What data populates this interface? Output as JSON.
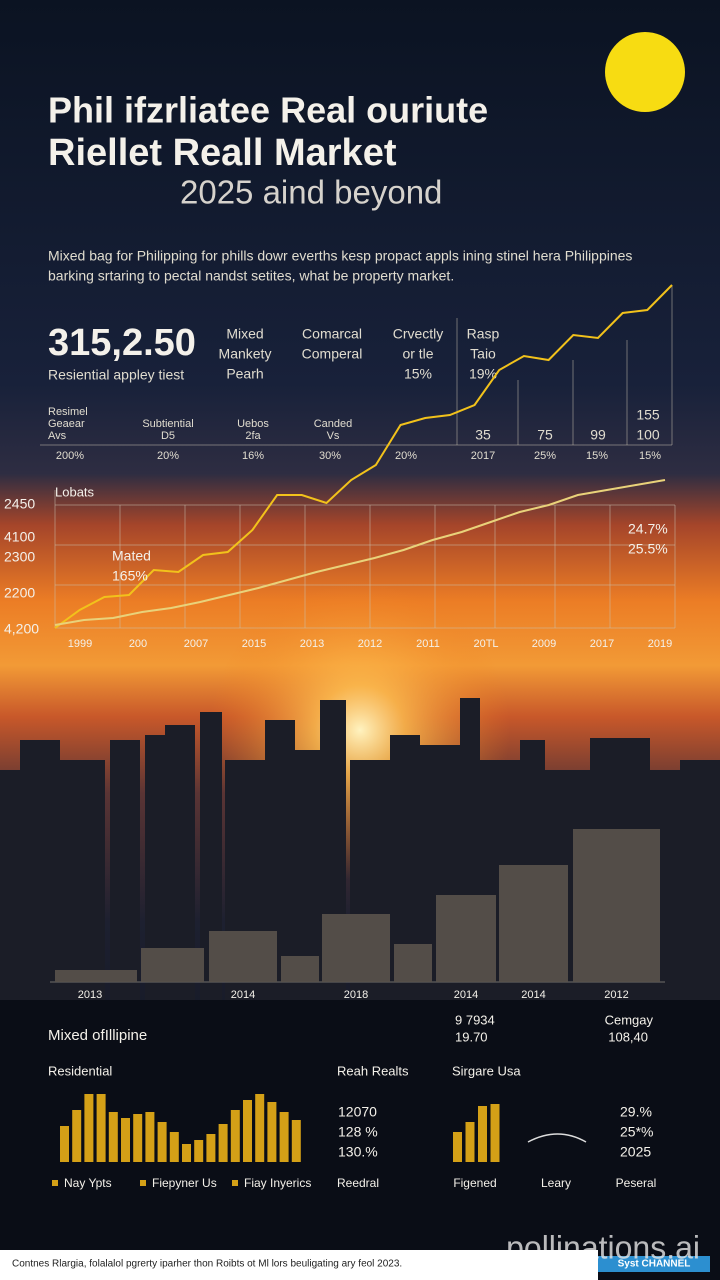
{
  "header": {
    "title": [
      "Phil ifzrliatee Real ouriute",
      "Riellet Reall Market"
    ],
    "subtitle": "2025 aind beyond",
    "intro": [
      "Mixed bag for Philipping for phills dowr everths kesp propact appls ining stinel hera Philippines",
      "barking srtaring to pectal nandst setites, what be property market."
    ]
  },
  "stats": {
    "headline": "315,2.50",
    "caption": "Resiential appley tiest",
    "columns": [
      [
        "Mixed",
        "Mankety",
        "Pearh"
      ],
      [
        "Comarcal",
        "Comperal"
      ],
      [
        "Crvectly",
        "or tle",
        "15%"
      ],
      [
        "Rasp",
        "Taio",
        "19%"
      ]
    ],
    "right_values": [
      "35",
      "75",
      "99",
      "155",
      "100"
    ],
    "row_labels": [
      [
        "Resimel",
        "Geaear",
        "Avs"
      ],
      [
        "Subtiential",
        "D5"
      ],
      [
        "Uebos",
        "2fa"
      ],
      [
        "Canded",
        "Vs"
      ]
    ],
    "row_values": [
      "200%",
      "20%",
      "16%",
      "30%",
      "20%",
      "2017",
      "25%",
      "15%",
      "15%"
    ]
  },
  "chart_data": [
    {
      "type": "line",
      "title": "Lobats",
      "y_labels": [
        "2450",
        "4100",
        "2300",
        "2200",
        "4,200"
      ],
      "x_labels": [
        "1999",
        "200",
        "2007",
        "2015",
        "2013",
        "2012",
        "2011",
        "20TL",
        "2009",
        "2017",
        "2019"
      ],
      "series": [
        {
          "color": "#f2c21b",
          "values": [
            72,
            90,
            103,
            105,
            130,
            128,
            145,
            148,
            170,
            205,
            205,
            197,
            220,
            235,
            275,
            282,
            285,
            295,
            330,
            344,
            340,
            365,
            362,
            387,
            390,
            415
          ]
        },
        {
          "color": "#e9d27a",
          "values": [
            75,
            80,
            82,
            88,
            92,
            98,
            105,
            112,
            120,
            128,
            135,
            142,
            150,
            160,
            168,
            178,
            188,
            195,
            205,
            210,
            215,
            220
          ]
        }
      ],
      "annotations": [
        "Mated",
        "165%",
        "24.7%",
        "25.5%"
      ]
    },
    {
      "type": "bar",
      "color": "#58514b",
      "categories": [
        "2013",
        null,
        "2014",
        null,
        "2018",
        null,
        "2014",
        "2014",
        "2012"
      ],
      "values": [
        12,
        34,
        51,
        26,
        68,
        38,
        87,
        117,
        153
      ]
    },
    {
      "type": "bar",
      "color": "#d4a017",
      "values": [
        36,
        52,
        68,
        68,
        50,
        44,
        48,
        50,
        40,
        30,
        18,
        22,
        28,
        38,
        52,
        62,
        68,
        60,
        50,
        42
      ]
    },
    {
      "type": "bar",
      "color": "#d4a017",
      "values": [
        30,
        40,
        56,
        58
      ]
    }
  ],
  "panel": {
    "heading": "Mixed ofIllipine",
    "mid_values": [
      "9 7934",
      "19.70"
    ],
    "right_values": [
      "Cemgay",
      "108,40"
    ],
    "sections": [
      "Residential",
      "Reah Realts",
      "Sirgare Usa"
    ],
    "figures": [
      "12070",
      "128 %",
      "130.%"
    ],
    "figures_right": [
      "29.%",
      "25*%",
      "2025"
    ],
    "legend": [
      "Nay Ypts",
      "Fiepyner Us",
      "Fiay Inyerics"
    ],
    "legend_right": [
      "Reedral",
      "Figened",
      "Leary",
      "Peseral"
    ]
  },
  "footer": {
    "text": "Contnes Rlargia, folalalol pgrerty iparher thon Roibts ot Ml lors beuligating ary feol 2023.",
    "watermark": "pollinations.ai",
    "badge": "Syst CHANNEL"
  }
}
